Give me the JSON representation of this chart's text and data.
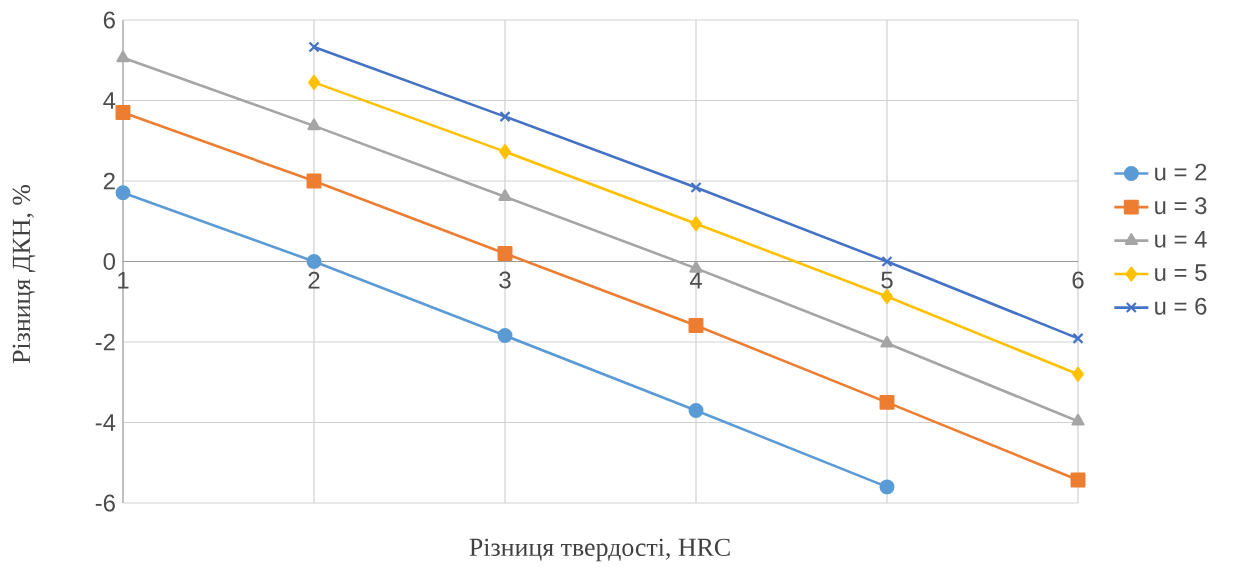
{
  "chart_data": {
    "type": "line",
    "xlabel": "Різниця твердості, HRC",
    "ylabel": "Різниця ДКН, %",
    "x": [
      1,
      2,
      3,
      4,
      5,
      6
    ],
    "xlim": [
      1,
      6
    ],
    "xticks": [
      1,
      2,
      3,
      4,
      5,
      6
    ],
    "ylim": [
      -6,
      6
    ],
    "yticks": [
      -6,
      -4,
      -2,
      0,
      2,
      4,
      6
    ],
    "grid": true,
    "legend": "right",
    "line_style": "solid",
    "series": [
      {
        "name": "u = 2",
        "color": "#5b9bd5",
        "marker": "circle",
        "values": [
          1.71,
          0,
          -1.84,
          -3.7,
          -5.6,
          null
        ]
      },
      {
        "name": "u = 3",
        "color": "#ed7d31",
        "marker": "square",
        "values": [
          3.7,
          2,
          0.2,
          -1.59,
          -3.5,
          -5.43
        ]
      },
      {
        "name": "u = 4",
        "color": "#a5a5a5",
        "marker": "triangle",
        "values": [
          5.06,
          3.37,
          1.61,
          -0.17,
          -2.03,
          -3.97
        ]
      },
      {
        "name": "u = 5",
        "color": "#ffc000",
        "marker": "diamond",
        "values": [
          null,
          4.45,
          2.73,
          0.94,
          -0.87,
          -2.8
        ]
      },
      {
        "name": "u = 6",
        "color": "#4472c4",
        "marker": "cross",
        "values": [
          null,
          5.33,
          3.6,
          1.84,
          0,
          -1.91
        ]
      }
    ]
  }
}
